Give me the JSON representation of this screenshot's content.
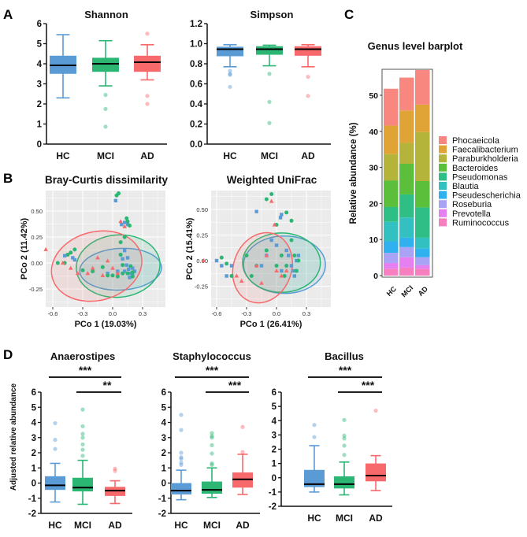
{
  "panels": {
    "a": "A",
    "b": "B",
    "c": "C",
    "d": "D"
  },
  "groups": [
    "HC",
    "MCI",
    "AD"
  ],
  "group_colors": {
    "HC": "#5b9bd5",
    "MCI": "#2bb673",
    "AD": "#f8696b"
  },
  "chart_data": [
    {
      "id": "shannon",
      "type": "boxplot",
      "title": "Shannon",
      "categories": [
        "HC",
        "MCI",
        "AD"
      ],
      "ylim": [
        0,
        6
      ],
      "yticks": [
        "0",
        "1",
        "2",
        "3",
        "4",
        "5",
        "6"
      ],
      "boxes": [
        {
          "whisker_low": 2.3,
          "q1": 3.5,
          "median": 3.92,
          "q3": 4.4,
          "whisker_high": 5.45,
          "outliers": []
        },
        {
          "whisker_low": 2.9,
          "q1": 3.6,
          "median": 4.0,
          "q3": 4.3,
          "whisker_high": 5.15,
          "outliers": [
            2.45,
            1.75,
            0.87
          ]
        },
        {
          "whisker_low": 3.2,
          "q1": 3.6,
          "median": 4.08,
          "q3": 4.4,
          "whisker_high": 4.95,
          "outliers": [
            5.5,
            2.4,
            2.0
          ]
        }
      ]
    },
    {
      "id": "simpson",
      "type": "boxplot",
      "title": "Simpson",
      "categories": [
        "HC",
        "MCI",
        "AD"
      ],
      "ylim": [
        0,
        1.2
      ],
      "yticks": [
        "0.0",
        "0.2",
        "0.4",
        "0.6",
        "0.8",
        "1.0",
        "1.2"
      ],
      "boxes": [
        {
          "whisker_low": 0.77,
          "q1": 0.875,
          "median": 0.945,
          "q3": 0.97,
          "whisker_high": 0.99,
          "outliers": [
            0.73,
            0.7,
            0.69,
            0.57
          ]
        },
        {
          "whisker_low": 0.78,
          "q1": 0.89,
          "median": 0.945,
          "q3": 0.975,
          "whisker_high": 0.985,
          "outliers": [
            0.7,
            0.42,
            0.21
          ]
        },
        {
          "whisker_low": 0.77,
          "q1": 0.88,
          "median": 0.945,
          "q3": 0.975,
          "whisker_high": 0.99,
          "outliers": [
            0.67,
            0.48
          ]
        }
      ]
    },
    {
      "id": "bray_curtis",
      "type": "scatter",
      "title": "Bray-Curtis dissimilarity",
      "xlabel": "PCo 1 (19.03%)",
      "ylabel": "PCo 2 (11.42%)",
      "xticks": [
        "-0.6",
        "-0.3",
        "0.0",
        "0.3"
      ],
      "yticks": [
        "-0.25",
        "0.00",
        "0.25",
        "0.50"
      ],
      "series": [
        {
          "group": "HC",
          "marker": "square",
          "points": [
            [
              -0.48,
              0.07
            ],
            [
              -0.4,
              0.05
            ],
            [
              -0.38,
              0.03
            ],
            [
              0.03,
              0.6
            ],
            [
              0.09,
              0.37
            ],
            [
              0.12,
              0.39
            ],
            [
              0.15,
              0.37
            ],
            [
              0.12,
              0.12
            ],
            [
              0.1,
              0.04
            ],
            [
              0.14,
              -0.02
            ],
            [
              0.16,
              -0.06
            ],
            [
              0.18,
              -0.1
            ],
            [
              0.2,
              -0.05
            ],
            [
              0.2,
              -0.12
            ],
            [
              0.17,
              -0.14
            ],
            [
              0.05,
              -0.08
            ],
            [
              -0.05,
              -0.1
            ],
            [
              0.12,
              -0.08
            ],
            [
              0.22,
              -0.08
            ],
            [
              0.15,
              0.05
            ]
          ],
          "ellipse": {
            "center": [
              0.08,
              -0.06
            ],
            "rx": 0.41,
            "ry": 0.2,
            "angle_deg": -3
          }
        },
        {
          "group": "MCI",
          "marker": "circle",
          "points": [
            [
              0.04,
              0.65
            ],
            [
              0.06,
              0.67
            ],
            [
              0.14,
              0.43
            ],
            [
              0.15,
              0.4
            ],
            [
              0.17,
              0.36
            ],
            [
              0.08,
              0.2
            ],
            [
              0.12,
              0.25
            ],
            [
              -0.45,
              0.08
            ],
            [
              -0.42,
              0.1
            ],
            [
              -0.38,
              0.13
            ],
            [
              -0.55,
              0.0
            ],
            [
              -0.48,
              0.0
            ],
            [
              -0.3,
              -0.07
            ],
            [
              -0.2,
              -0.08
            ],
            [
              -0.1,
              -0.04
            ],
            [
              -0.05,
              -0.12
            ],
            [
              0.0,
              -0.12
            ],
            [
              0.05,
              -0.13
            ],
            [
              0.1,
              -0.1
            ],
            [
              0.15,
              -0.1
            ],
            [
              0.18,
              -0.03
            ],
            [
              0.2,
              -0.13
            ],
            [
              0.08,
              0.08
            ],
            [
              0.1,
              -0.02
            ],
            [
              0.2,
              -0.09
            ]
          ],
          "ellipse": {
            "center": [
              0.055,
              -0.03
            ],
            "rx": 0.42,
            "ry": 0.3,
            "angle_deg": -5
          }
        },
        {
          "group": "AD",
          "marker": "triangle",
          "points": [
            [
              -0.67,
              0.13
            ],
            [
              -0.5,
              0.0
            ],
            [
              -0.42,
              -0.05
            ],
            [
              -0.35,
              -0.1
            ],
            [
              -0.25,
              -0.1
            ],
            [
              -0.2,
              -0.05
            ],
            [
              -0.15,
              0.05
            ],
            [
              -0.1,
              -0.12
            ],
            [
              -0.05,
              0.02
            ],
            [
              0.0,
              -0.05
            ],
            [
              0.08,
              0.4
            ],
            [
              0.12,
              0.35
            ],
            [
              0.05,
              -0.1
            ]
          ],
          "ellipse": {
            "center": [
              -0.16,
              -0.03
            ],
            "rx": 0.46,
            "ry": 0.33,
            "angle_deg": -15
          }
        }
      ]
    },
    {
      "id": "weighted_unifrac",
      "type": "scatter",
      "title": "Weighted UniFrac",
      "xlabel": "PCo 1 (26.41%)",
      "ylabel": "PCo 2 (15.41%)",
      "xticks": [
        "-0.6",
        "-0.3",
        "0.0",
        "0.3"
      ],
      "yticks": [
        "-0.25",
        "0.00",
        "0.25",
        "0.50"
      ],
      "series": [
        {
          "group": "HC",
          "marker": "square",
          "points": [
            [
              -0.55,
              -0.05
            ],
            [
              -0.6,
              0.0
            ],
            [
              -0.5,
              -0.15
            ],
            [
              -0.45,
              -0.05
            ],
            [
              -0.2,
              0.48
            ],
            [
              0.05,
              0.45
            ],
            [
              0.04,
              0.42
            ],
            [
              -0.05,
              0.2
            ],
            [
              0.0,
              0.15
            ],
            [
              0.1,
              0.1
            ],
            [
              0.12,
              0.05
            ],
            [
              0.15,
              -0.05
            ],
            [
              0.2,
              -0.1
            ],
            [
              0.22,
              0.05
            ],
            [
              0.18,
              -0.15
            ],
            [
              0.05,
              -0.1
            ],
            [
              -0.1,
              0.05
            ],
            [
              -0.15,
              -0.05
            ],
            [
              0.2,
              0.0
            ],
            [
              0.17,
              -0.1
            ]
          ],
          "ellipse": {
            "center": [
              0.08,
              -0.04
            ],
            "rx": 0.41,
            "ry": 0.28,
            "angle_deg": 0
          }
        },
        {
          "group": "MCI",
          "marker": "circle",
          "points": [
            [
              -0.1,
              0.6
            ],
            [
              -0.05,
              0.65
            ],
            [
              0.1,
              0.47
            ],
            [
              0.15,
              0.39
            ],
            [
              0.0,
              0.35
            ],
            [
              -0.55,
              0.03
            ],
            [
              -0.5,
              -0.03
            ],
            [
              -0.45,
              -0.15
            ],
            [
              -0.3,
              0.05
            ],
            [
              -0.2,
              -0.05
            ],
            [
              -0.1,
              0.1
            ],
            [
              0.0,
              -0.05
            ],
            [
              0.05,
              0.05
            ],
            [
              0.1,
              -0.05
            ],
            [
              0.18,
              0.05
            ],
            [
              0.2,
              -0.1
            ],
            [
              0.22,
              0.0
            ],
            [
              0.15,
              0.2
            ],
            [
              -0.25,
              -0.15
            ],
            [
              0.08,
              -0.15
            ]
          ],
          "ellipse": {
            "center": [
              0.05,
              -0.02
            ],
            "rx": 0.39,
            "ry": 0.29,
            "angle_deg": 0
          }
        },
        {
          "group": "AD",
          "marker": "triangle",
          "points": [
            [
              -0.73,
              0.0
            ],
            [
              -0.05,
              0.58
            ],
            [
              -0.02,
              0.35
            ],
            [
              -0.4,
              -0.15
            ],
            [
              -0.35,
              -0.2
            ],
            [
              -0.2,
              -0.05
            ],
            [
              -0.1,
              0.05
            ],
            [
              0.0,
              -0.1
            ],
            [
              0.05,
              -0.15
            ],
            [
              -0.15,
              -0.22
            ],
            [
              0.1,
              -0.1
            ]
          ],
          "ellipse": {
            "center": [
              -0.14,
              -0.07
            ],
            "rx": 0.29,
            "ry": 0.35,
            "angle_deg": 20
          }
        }
      ]
    },
    {
      "id": "genus",
      "type": "stacked_bar",
      "title": "Genus level barplot",
      "ylabel": "Relative abundance (%)",
      "ylim": [
        0,
        57
      ],
      "yticks": [
        "0",
        "10",
        "20",
        "30",
        "40",
        "50"
      ],
      "categories": [
        "HC",
        "MCI",
        "AD"
      ],
      "series": [
        {
          "name": "Phocaeicola",
          "color": "#f8877f",
          "values": [
            10.2,
            9.1,
            9.6
          ]
        },
        {
          "name": "Faecalibacterium",
          "color": "#e0a336",
          "values": [
            7.9,
            9.0,
            7.6
          ]
        },
        {
          "name": "Paraburkholderia",
          "color": "#b5b43a",
          "values": [
            7.3,
            5.8,
            13.6
          ]
        },
        {
          "name": "Bacteroides",
          "color": "#5cbf3c",
          "values": [
            7.4,
            8.5,
            7.3
          ]
        },
        {
          "name": "Pseudomonas",
          "color": "#2fbf86",
          "values": [
            4.1,
            6.4,
            8.4
          ]
        },
        {
          "name": "Blautia",
          "color": "#33c0c0",
          "values": [
            5.4,
            5.6,
            3.0
          ]
        },
        {
          "name": "Pseudescherichia",
          "color": "#2fb0ef",
          "values": [
            3.2,
            2.6,
            2.4
          ]
        },
        {
          "name": "Roseburia",
          "color": "#a9a3f5",
          "values": [
            2.8,
            2.8,
            2.2
          ]
        },
        {
          "name": "Prevotella",
          "color": "#e67ff0",
          "values": [
            1.6,
            2.9,
            1.0
          ]
        },
        {
          "name": "Ruminococcus",
          "color": "#f77fc0",
          "values": [
            1.9,
            2.2,
            1.9
          ]
        }
      ]
    },
    {
      "id": "anaerostipes",
      "type": "boxplot",
      "title": "Anaerostipes",
      "ylabel": "Adjusted relative abundance",
      "categories": [
        "HC",
        "MCI",
        "AD"
      ],
      "ylim": [
        -2,
        6
      ],
      "yticks": [
        "-2",
        "-1",
        "0",
        "1",
        "2",
        "3",
        "4",
        "5",
        "6"
      ],
      "significance": [
        {
          "from": "HC",
          "to": "AD",
          "label": "***"
        },
        {
          "from": "MCI",
          "to": "AD",
          "label": "**"
        }
      ],
      "boxes": [
        {
          "whisker_low": -1.25,
          "q1": -0.45,
          "median": -0.15,
          "q3": 0.45,
          "whisker_high": 1.3,
          "outliers": [
            2.25,
            2.85,
            3.95
          ]
        },
        {
          "whisker_low": -1.4,
          "q1": -0.55,
          "median": -0.3,
          "q3": 0.35,
          "whisker_high": 1.5,
          "outliers": [
            1.8,
            2.2,
            2.55,
            3.0,
            3.25,
            3.75,
            4.85
          ]
        },
        {
          "whisker_low": -1.35,
          "q1": -0.85,
          "median": -0.5,
          "q3": -0.25,
          "whisker_high": 0.15,
          "outliers": [
            0.8,
            0.95
          ]
        }
      ]
    },
    {
      "id": "staphylococcus",
      "type": "boxplot",
      "title": "Staphylococcus",
      "categories": [
        "HC",
        "MCI",
        "AD"
      ],
      "ylim": [
        -2,
        6
      ],
      "yticks": [
        "-2",
        "-1",
        "0",
        "1",
        "2",
        "3",
        "4",
        "5",
        "6"
      ],
      "significance": [
        {
          "from": "HC",
          "to": "AD",
          "label": "***"
        },
        {
          "from": "MCI",
          "to": "AD",
          "label": "***"
        }
      ],
      "boxes": [
        {
          "whisker_low": -1.1,
          "q1": -0.75,
          "median": -0.5,
          "q3": 0.0,
          "whisker_high": 0.85,
          "outliers": [
            1.2,
            1.35,
            1.6,
            1.7,
            2.0,
            3.5,
            4.5
          ]
        },
        {
          "whisker_low": -0.95,
          "q1": -0.7,
          "median": -0.45,
          "q3": 0.1,
          "whisker_high": 1.0,
          "outliers": [
            1.2,
            1.3,
            1.95,
            2.5,
            3.0,
            3.1,
            3.3
          ]
        },
        {
          "whisker_low": -0.75,
          "q1": -0.3,
          "median": 0.25,
          "q3": 0.7,
          "whisker_high": 1.9,
          "outliers": [
            2.05,
            3.7
          ]
        }
      ]
    },
    {
      "id": "bacillus",
      "type": "boxplot",
      "title": "Bacillus",
      "categories": [
        "HC",
        "MCI",
        "AD"
      ],
      "ylim": [
        -2,
        6
      ],
      "yticks": [
        "-2",
        "-1",
        "0",
        "1",
        "2",
        "3",
        "4",
        "5",
        "6"
      ],
      "significance": [
        {
          "from": "HC",
          "to": "AD",
          "label": "***"
        },
        {
          "from": "MCI",
          "to": "AD",
          "label": "***"
        }
      ],
      "boxes": [
        {
          "whisker_low": -1.0,
          "q1": -0.65,
          "median": -0.45,
          "q3": 0.55,
          "whisker_high": 2.25,
          "outliers": [
            2.85,
            3.7
          ]
        },
        {
          "whisker_low": -1.2,
          "q1": -0.75,
          "median": -0.45,
          "q3": 0.1,
          "whisker_high": 1.1,
          "outliers": [
            1.6,
            2.25,
            2.75,
            2.95,
            4.05
          ]
        },
        {
          "whisker_low": -0.9,
          "q1": -0.25,
          "median": 0.15,
          "q3": 1.0,
          "whisker_high": 1.55,
          "outliers": [
            4.7
          ]
        }
      ]
    }
  ]
}
